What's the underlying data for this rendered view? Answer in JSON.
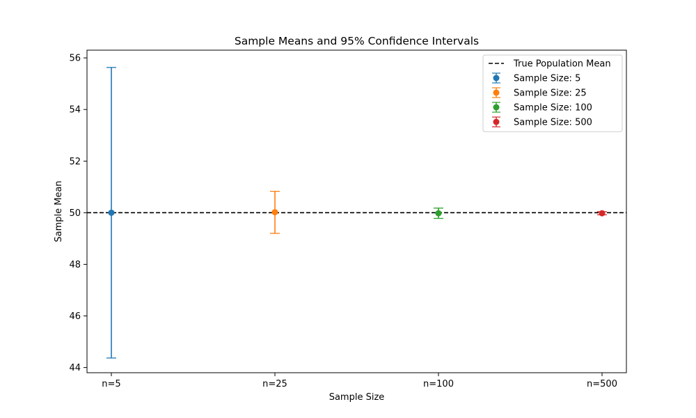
{
  "chart_data": {
    "type": "scatter",
    "title": "Sample Means and 95% Confidence Intervals",
    "xlabel": "Sample Size",
    "ylabel": "Sample Mean",
    "categories": [
      "n=5",
      "n=25",
      "n=100",
      "n=500"
    ],
    "ylim": [
      43.8,
      56.3
    ],
    "yticks": [
      44,
      46,
      48,
      50,
      52,
      54,
      56
    ],
    "grid": false,
    "legend_position": "top-right",
    "reference_line": {
      "name": "True Population Mean",
      "value": 50,
      "color": "#000000",
      "style": "dashed"
    },
    "series": [
      {
        "name": "Sample Size: 5",
        "category": "n=5",
        "mean": 50.0,
        "ci_low": 44.37,
        "ci_high": 55.63,
        "color": "#1f77b4"
      },
      {
        "name": "Sample Size: 25",
        "category": "n=25",
        "mean": 50.02,
        "ci_low": 49.2,
        "ci_high": 50.83,
        "color": "#ff7f0e"
      },
      {
        "name": "Sample Size: 100",
        "category": "n=100",
        "mean": 49.98,
        "ci_low": 49.78,
        "ci_high": 50.18,
        "color": "#2ca02c"
      },
      {
        "name": "Sample Size: 500",
        "category": "n=500",
        "mean": 49.98,
        "ci_low": 49.92,
        "ci_high": 50.04,
        "color": "#d62728"
      }
    ]
  }
}
